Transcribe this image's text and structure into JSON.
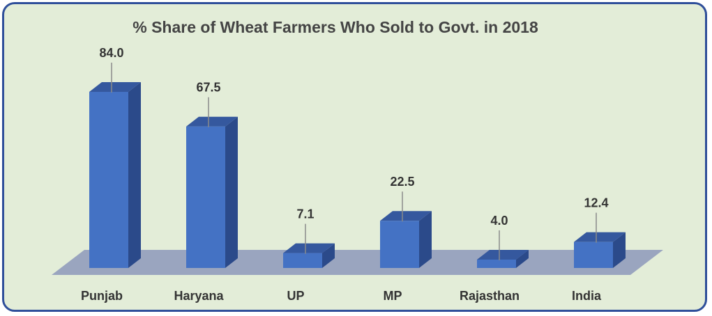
{
  "chart_data": {
    "type": "bar",
    "title": "% Share of Wheat Farmers Who Sold to Govt. in 2018",
    "categories": [
      "Punjab",
      "Haryana",
      "UP",
      "MP",
      "Rajasthan",
      "India"
    ],
    "values": [
      84.0,
      67.5,
      7.1,
      22.5,
      4.0,
      12.4
    ],
    "value_labels": [
      "84.0",
      "67.5",
      "7.1",
      "22.5",
      "4.0",
      "12.4"
    ],
    "xlabel": "",
    "ylabel": "",
    "ylim": [
      0,
      84.0
    ],
    "grid": false,
    "legend": "none",
    "colors": {
      "bar_front": "#4472c4",
      "bar_side": "#2b4a8a",
      "bar_top": "#35589e",
      "floor": "#9aa5bf",
      "frame_border": "#2f4f9a",
      "background": "#e3edd8"
    }
  }
}
